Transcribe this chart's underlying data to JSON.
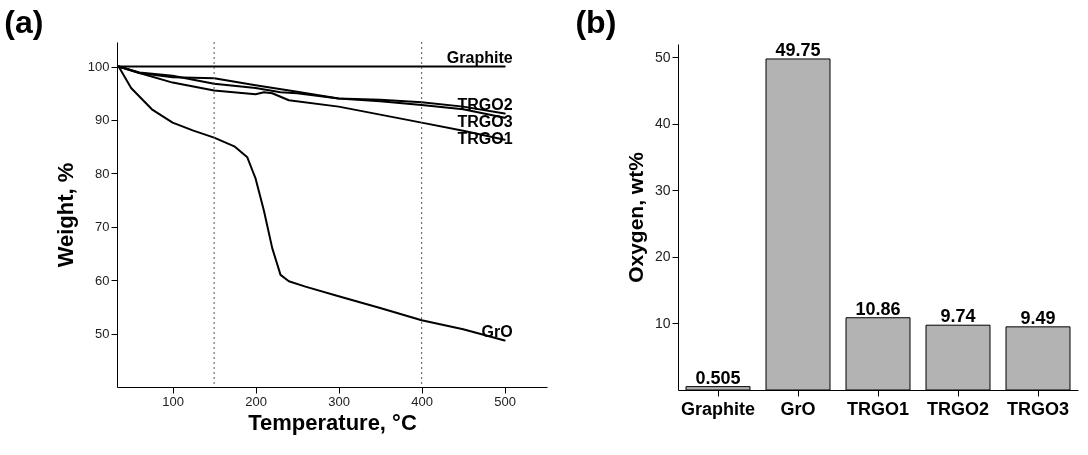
{
  "chart_data": [
    {
      "type": "line",
      "title": "(a)",
      "xlabel": "Temperature, °C",
      "ylabel": "Weight, %",
      "xlim": [
        33,
        551
      ],
      "ylim": [
        40,
        104.6
      ],
      "xticks": [
        100,
        200,
        300,
        400,
        500
      ],
      "yticks": [
        50,
        60,
        70,
        80,
        90,
        100
      ],
      "grid": false,
      "marker": "none",
      "line_style": "solid",
      "series": [
        {
          "name": "Graphite",
          "color": "#000000",
          "x": [
            35,
            100,
            200,
            300,
            400,
            500
          ],
          "values": [
            100,
            100,
            100,
            100,
            100,
            100
          ]
        },
        {
          "name": "TRGO2",
          "color": "#000000",
          "x": [
            35,
            60,
            100,
            150,
            200,
            250,
            300,
            350,
            400,
            450,
            500
          ],
          "values": [
            100,
            98.8,
            98,
            97.8,
            96.5,
            95.3,
            94,
            93.8,
            93.3,
            92.5,
            91.2
          ]
        },
        {
          "name": "TRGO3",
          "color": "#000000",
          "x": [
            35,
            60,
            100,
            150,
            200,
            230,
            250,
            300,
            350,
            400,
            450,
            500
          ],
          "values": [
            100,
            98.9,
            98.3,
            96.8,
            96,
            95.2,
            95,
            94,
            93.5,
            92.8,
            92,
            90.4
          ]
        },
        {
          "name": "TRGO1",
          "color": "#000000",
          "x": [
            35,
            60,
            100,
            150,
            200,
            210,
            220,
            240,
            300,
            350,
            400,
            450,
            500
          ],
          "values": [
            100,
            98.8,
            97,
            95.5,
            94.8,
            95.2,
            95,
            93.7,
            92.5,
            91,
            89.5,
            88,
            86.3
          ]
        },
        {
          "name": "GrO",
          "color": "#000000",
          "x": [
            35,
            50,
            75,
            100,
            125,
            150,
            175,
            190,
            200,
            210,
            220,
            230,
            240,
            260,
            300,
            350,
            400,
            450,
            500
          ],
          "values": [
            100,
            96,
            92,
            89.5,
            88,
            86.7,
            85,
            83,
            79,
            73,
            66,
            61,
            59.8,
            58.8,
            57,
            54.8,
            52.5,
            50.8,
            48.7
          ]
        }
      ],
      "ref_lines": [
        {
          "axis": "x",
          "value": 150,
          "color": "#555555",
          "line_style": "dotted"
        },
        {
          "axis": "x",
          "value": 400,
          "color": "#555555",
          "line_style": "dotted"
        }
      ]
    },
    {
      "type": "bar",
      "title": "(b)",
      "ylabel": "Oxygen, wt%",
      "categories": [
        "Graphite",
        "GrO",
        "TRGO1",
        "TRGO2",
        "TRGO3"
      ],
      "values": [
        0.505,
        49.75,
        10.86,
        9.74,
        9.49
      ],
      "color": "#b3b3b3",
      "ylim": [
        0,
        52
      ],
      "yticks": [
        10,
        20,
        30,
        40,
        50
      ],
      "data_labels": true,
      "grid": false
    }
  ]
}
